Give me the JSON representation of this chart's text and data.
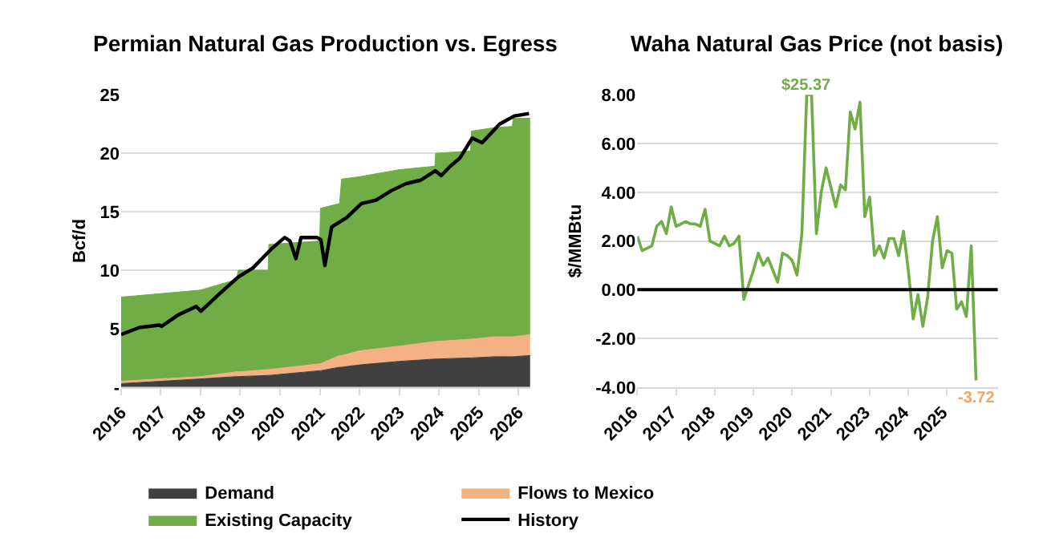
{
  "chart_data": [
    {
      "type": "area",
      "title": "Permian Natural Gas Production vs. Egress",
      "ylabel": "Bcf/d",
      "stacked": true,
      "legend": "bottom",
      "grid": "y",
      "x": [
        2016,
        2017,
        2018,
        2018.9,
        2018.95,
        2019.7,
        2019.72,
        2021.0,
        2021.02,
        2021.5,
        2021.55,
        2022,
        2023,
        2023.9,
        2023.92,
        2024.8,
        2024.82,
        2025.4,
        2025.85,
        2025.87,
        2026.3
      ],
      "xlim": [
        2016,
        2026.3
      ],
      "xticks": [
        2016,
        2017,
        2018,
        2019,
        2020,
        2021,
        2022,
        2023,
        2024,
        2025,
        2026
      ],
      "ylim": [
        0,
        25
      ],
      "yticks": [
        {
          "value": 0,
          "label": "-"
        },
        5,
        10,
        15,
        20,
        25
      ],
      "series": [
        {
          "name": "Demand",
          "color": "#404040",
          "values": [
            0.3,
            0.5,
            0.7,
            0.9,
            0.9,
            1.0,
            1.0,
            1.4,
            1.4,
            1.7,
            1.7,
            1.9,
            2.2,
            2.4,
            2.4,
            2.5,
            2.5,
            2.6,
            2.6,
            2.6,
            2.7
          ]
        },
        {
          "name": "Flows to Mexico",
          "color": "#f4b183",
          "values": [
            0.2,
            0.2,
            0.2,
            0.4,
            0.4,
            0.5,
            0.5,
            0.6,
            0.6,
            1.0,
            1.0,
            1.2,
            1.3,
            1.5,
            1.5,
            1.6,
            1.6,
            1.7,
            1.7,
            1.7,
            1.8
          ]
        },
        {
          "name": "Existing Capacity",
          "color": "#70ad47",
          "values": [
            7.2,
            7.3,
            7.4,
            7.9,
            8.7,
            8.5,
            10.7,
            10.5,
            13.3,
            13.0,
            15.1,
            14.9,
            15.1,
            15.0,
            16.1,
            16.1,
            17.8,
            17.9,
            18.0,
            18.7,
            18.5
          ]
        },
        {
          "name": "History",
          "type": "line",
          "color": "#000000",
          "x": [
            2016,
            2016.46,
            2016.96,
            2017.02,
            2017.45,
            2017.89,
            2018.01,
            2018.45,
            2018.94,
            2019.32,
            2019.81,
            2020.12,
            2020.25,
            2020.4,
            2020.53,
            2020.93,
            2021.03,
            2021.13,
            2021.3,
            2021.68,
            2022.05,
            2022.42,
            2022.8,
            2023.17,
            2023.54,
            2023.91,
            2024.06,
            2024.29,
            2024.53,
            2024.84,
            2025.09,
            2025.53,
            2025.9,
            2026.27
          ],
          "values": [
            4.5,
            5.1,
            5.3,
            5.2,
            6.2,
            6.9,
            6.5,
            7.9,
            9.4,
            10.2,
            11.9,
            12.8,
            12.5,
            11.0,
            12.8,
            12.8,
            12.6,
            10.4,
            13.7,
            14.5,
            15.7,
            16.0,
            16.8,
            17.4,
            17.7,
            18.5,
            18.1,
            18.9,
            19.6,
            21.3,
            20.9,
            22.5,
            23.2,
            23.4
          ]
        }
      ]
    },
    {
      "type": "line",
      "title": "Waha Natural Gas Price (not basis)",
      "ylabel": "$/MMBtu",
      "grid": "y",
      "categories": [
        "2016",
        null,
        null,
        null,
        null,
        null,
        null,
        null,
        "2017",
        null,
        null,
        null,
        null,
        null,
        null,
        null,
        "2018",
        null,
        null,
        null,
        null,
        null,
        null,
        null,
        "2019",
        null,
        null,
        null,
        null,
        null,
        null,
        null,
        "2020",
        null,
        null,
        null,
        null,
        null,
        null,
        null,
        "2021",
        null,
        null,
        null,
        null,
        null,
        null,
        null,
        "2023",
        null,
        null,
        null,
        null,
        null,
        null,
        null,
        "2024",
        null,
        null,
        null,
        null,
        null,
        null,
        null,
        "2025",
        null,
        null,
        null,
        null,
        null,
        null
      ],
      "ylim": [
        -4,
        8
      ],
      "yticks": [
        {
          "value": -4,
          "label": "-4.00"
        },
        {
          "value": -2,
          "label": "-2.00"
        },
        {
          "value": 0,
          "label": "0.00"
        },
        {
          "value": 2,
          "label": "2.00"
        },
        {
          "value": 4,
          "label": "4.00"
        },
        {
          "value": 6,
          "label": "6.00"
        },
        {
          "value": 8,
          "label": "8.00"
        }
      ],
      "ref_lines": [
        {
          "axis": "y",
          "value": 0,
          "color": "#000000"
        }
      ],
      "annotations": [
        {
          "text": "$25.37",
          "y": 8
        },
        {
          "text": "-3.72",
          "y": -3.72
        }
      ],
      "series": [
        {
          "color": "#70ad47",
          "values": [
            2.2,
            1.6,
            1.7,
            1.8,
            2.6,
            2.8,
            2.3,
            3.4,
            2.6,
            2.7,
            2.8,
            2.7,
            2.7,
            2.6,
            3.3,
            2.0,
            1.9,
            1.8,
            2.2,
            1.8,
            1.9,
            2.2,
            -0.4,
            0.2,
            0.8,
            1.5,
            1.0,
            1.3,
            0.8,
            0.3,
            1.5,
            1.4,
            1.2,
            0.6,
            2.3,
            8.0,
            8.0,
            2.3,
            4.0,
            5.0,
            4.2,
            3.4,
            4.3,
            4.1,
            7.3,
            6.6,
            7.7,
            3.0,
            3.8,
            1.4,
            1.8,
            1.3,
            2.1,
            2.1,
            1.4,
            2.4,
            0.8,
            -1.2,
            -0.2,
            -1.5,
            -0.3,
            2.0,
            3.0,
            0.9,
            1.6,
            1.5,
            -0.8,
            -0.5,
            -1.1,
            1.8,
            -3.72
          ]
        }
      ]
    }
  ]
}
